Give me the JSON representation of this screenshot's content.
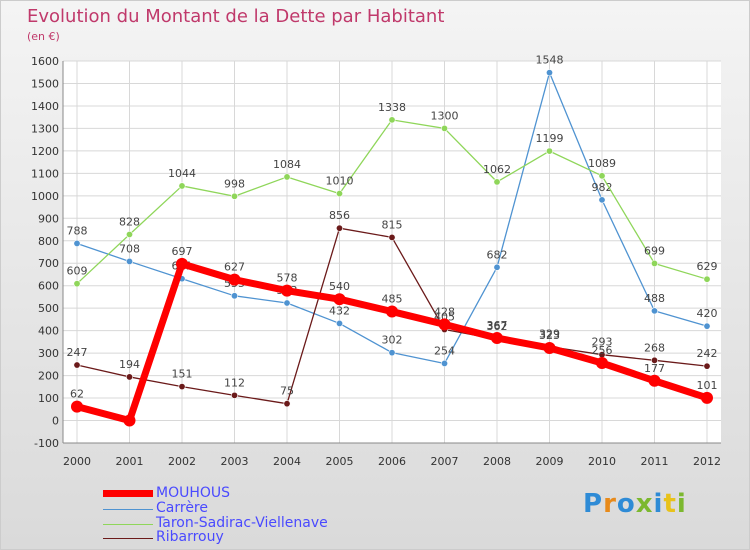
{
  "title": "Evolution du Montant de la Dette par Habitant",
  "subtitle": "(en €)",
  "logo": {
    "text": "Proxiti",
    "colors": [
      "#2e8bd6",
      "#e88a1a",
      "#2e8bd6",
      "#7cb82f",
      "#2e8bd6",
      "#e8c21a",
      "#7cb82f"
    ]
  },
  "chart_data": {
    "type": "line",
    "x": [
      "2000",
      "2001",
      "2002",
      "2003",
      "2004",
      "2005",
      "2006",
      "2007",
      "2008",
      "2009",
      "2010",
      "2011",
      "2012"
    ],
    "ylim": [
      -100,
      1600
    ],
    "yticks": [
      "-100",
      "0",
      "100",
      "200",
      "300",
      "400",
      "500",
      "600",
      "700",
      "800",
      "900",
      "1000",
      "1100",
      "1200",
      "1300",
      "1400",
      "1500",
      "1600"
    ],
    "grid": true,
    "legend_position": "bottom-left",
    "series": [
      {
        "name": "Carrère",
        "color": "#4f93d1",
        "width": 1.3,
        "values": [
          788,
          708,
          631,
          555,
          523,
          432,
          302,
          254,
          682,
          1548,
          982,
          488,
          420
        ],
        "labels": [
          "788",
          "708",
          "631",
          "555",
          "523",
          "432",
          "302",
          "254",
          "682",
          "1548",
          "982",
          "488",
          "420"
        ]
      },
      {
        "name": "Taron-Sadirac-Viellenave",
        "color": "#8fd65a",
        "width": 1.3,
        "values": [
          609,
          828,
          1044,
          998,
          1084,
          1010,
          1338,
          1300,
          1062,
          1199,
          1089,
          699,
          629
        ],
        "labels": [
          "609",
          "828",
          "1044",
          "998",
          "1084",
          "1010",
          "1338",
          "1300",
          "1062",
          "1199",
          "1089",
          "699",
          "629"
        ]
      },
      {
        "name": "Ribarrouy",
        "color": "#6b1a1a",
        "width": 1.3,
        "values": [
          247,
          194,
          151,
          112,
          75,
          856,
          815,
          405,
          362,
          329,
          293,
          268,
          242
        ],
        "labels": [
          "247",
          "194",
          "151",
          "112",
          "75",
          "856",
          "815",
          "405",
          "362",
          "329",
          "293",
          "268",
          "242"
        ]
      },
      {
        "name": "MOUHOUS",
        "color": "#ff0000",
        "width": 7,
        "values": [
          62,
          0,
          697,
          627,
          578,
          540,
          485,
          428,
          367,
          323,
          256,
          177,
          101
        ],
        "labels": [
          "62",
          "",
          "697",
          "627",
          "578",
          "540",
          "485",
          "428",
          "367",
          "323",
          "256",
          "177",
          "101"
        ]
      }
    ]
  },
  "legend": [
    "MOUHOUS",
    "Carrère",
    "Taron-Sadirac-Viellenave",
    "Ribarrouy"
  ]
}
